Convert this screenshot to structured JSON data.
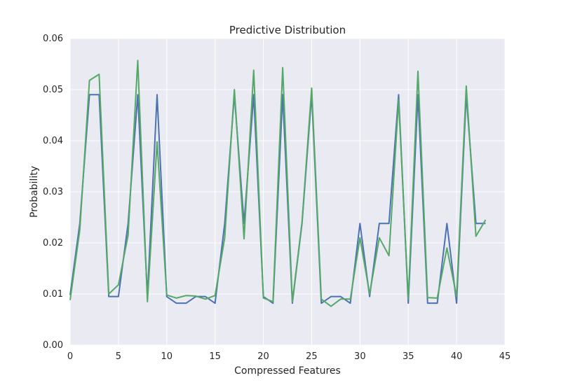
{
  "chart_data": {
    "type": "line",
    "title": "Predictive Distribution",
    "xlabel": "Compressed Features",
    "ylabel": "Probability",
    "xlim": [
      0,
      45
    ],
    "ylim": [
      0.0,
      0.06
    ],
    "x_ticks": [
      0,
      5,
      10,
      15,
      20,
      25,
      30,
      35,
      40,
      45
    ],
    "x_tick_labels": [
      "0",
      "5",
      "10",
      "15",
      "20",
      "25",
      "30",
      "35",
      "40",
      "45"
    ],
    "y_ticks": [
      0.0,
      0.01,
      0.02,
      0.03,
      0.04,
      0.05,
      0.06
    ],
    "y_tick_labels": [
      "0.00",
      "0.01",
      "0.02",
      "0.03",
      "0.04",
      "0.05",
      "0.06"
    ],
    "grid": true,
    "background": "#eaeaf2",
    "grid_color": "#ffffff",
    "x": [
      0,
      1,
      2,
      3,
      4,
      5,
      6,
      7,
      8,
      9,
      10,
      11,
      12,
      13,
      14,
      15,
      16,
      17,
      18,
      19,
      20,
      21,
      22,
      23,
      24,
      25,
      26,
      27,
      28,
      29,
      30,
      31,
      32,
      33,
      34,
      35,
      36,
      37,
      38,
      39,
      40,
      41,
      42,
      43
    ],
    "series": [
      {
        "color": "#4c72b0",
        "values": [
          0.0098,
          0.0238,
          0.049,
          0.049,
          0.0095,
          0.0095,
          0.0238,
          0.049,
          0.0095,
          0.049,
          0.0095,
          0.0082,
          0.0082,
          0.0095,
          0.0095,
          0.0082,
          0.0238,
          0.049,
          0.0238,
          0.049,
          0.0095,
          0.0082,
          0.049,
          0.0082,
          0.0238,
          0.049,
          0.0082,
          0.0095,
          0.0095,
          0.0082,
          0.0238,
          0.0095,
          0.0238,
          0.0238,
          0.049,
          0.0082,
          0.049,
          0.0082,
          0.0082,
          0.0238,
          0.0082,
          0.049,
          0.0238,
          0.0238
        ]
      },
      {
        "color": "#55a868",
        "values": [
          0.0088,
          0.0225,
          0.0518,
          0.053,
          0.01,
          0.0118,
          0.0215,
          0.0557,
          0.0085,
          0.0398,
          0.0098,
          0.0092,
          0.0097,
          0.0096,
          0.009,
          0.0097,
          0.021,
          0.05,
          0.0208,
          0.0538,
          0.0092,
          0.0085,
          0.0543,
          0.0085,
          0.024,
          0.0503,
          0.009,
          0.0076,
          0.009,
          0.009,
          0.021,
          0.01,
          0.021,
          0.0175,
          0.048,
          0.009,
          0.0536,
          0.0093,
          0.0092,
          0.019,
          0.0095,
          0.0507,
          0.0213,
          0.0245
        ]
      }
    ]
  }
}
